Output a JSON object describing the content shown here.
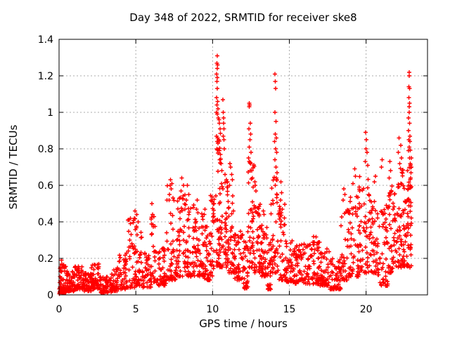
{
  "chart_data": {
    "type": "scatter",
    "title": "Day 348 of 2022, SRMTID for receiver ske8",
    "xlabel": "GPS time / hours",
    "ylabel": "SRMTID / TECUs",
    "xlim": [
      0,
      24
    ],
    "ylim": [
      0,
      1.4
    ],
    "xtick_values": [
      0,
      5,
      10,
      15,
      20
    ],
    "xtick_labels": [
      "0",
      "5",
      "10",
      "15",
      "20"
    ],
    "ytick_values": [
      0,
      0.2,
      0.4,
      0.6,
      0.8,
      1.0,
      1.2,
      1.4
    ],
    "ytick_labels": [
      "0",
      "0.2",
      "0.4",
      "0.6",
      "0.8",
      "1",
      "1.2",
      "1.4"
    ],
    "grid": true,
    "legend": "none",
    "marker": "plus",
    "marker_color": "#ff0000",
    "grid_color": "#ababab",
    "border_color": "#000000",
    "series_name": "SRMTID",
    "seed": 1348,
    "density_bands_comment": "dense scatter of ~2100 pts; each band = [x_start_h, x_end_h, y_min_TECU, y_max_TECU, point_count, low_bias_exponent] summarizing the plotted cloud envelope read from the image",
    "bands": [
      [
        0.02,
        0.5,
        0.01,
        0.18,
        55,
        2.0
      ],
      [
        0.5,
        1.0,
        0.02,
        0.13,
        50,
        1.8
      ],
      [
        1.0,
        1.6,
        0.03,
        0.16,
        55,
        1.8
      ],
      [
        1.6,
        2.1,
        0.02,
        0.12,
        45,
        1.8
      ],
      [
        2.1,
        2.6,
        0.03,
        0.17,
        50,
        1.8
      ],
      [
        2.6,
        3.4,
        0.01,
        0.1,
        60,
        1.8
      ],
      [
        3.4,
        3.9,
        0.02,
        0.15,
        45,
        1.8
      ],
      [
        3.9,
        4.4,
        0.03,
        0.22,
        40,
        2.0
      ],
      [
        4.4,
        5.0,
        0.04,
        0.42,
        45,
        2.2
      ],
      [
        5.0,
        5.45,
        0.05,
        0.38,
        35,
        2.2
      ],
      [
        5.45,
        6.0,
        0.04,
        0.24,
        40,
        1.8
      ],
      [
        6.0,
        6.3,
        0.07,
        0.44,
        25,
        2.0
      ],
      [
        6.3,
        7.0,
        0.05,
        0.26,
        50,
        1.8
      ],
      [
        7.0,
        7.6,
        0.08,
        0.6,
        45,
        2.2
      ],
      [
        7.6,
        8.2,
        0.1,
        0.55,
        50,
        2.0
      ],
      [
        8.2,
        8.8,
        0.1,
        0.5,
        50,
        2.2
      ],
      [
        8.8,
        9.45,
        0.1,
        0.45,
        55,
        2.0
      ],
      [
        9.45,
        9.85,
        0.08,
        0.4,
        40,
        2.0
      ],
      [
        9.85,
        10.15,
        0.1,
        0.55,
        30,
        1.6
      ],
      [
        10.15,
        10.6,
        0.15,
        0.85,
        50,
        1.6
      ],
      [
        10.6,
        11.0,
        0.15,
        0.65,
        40,
        1.8
      ],
      [
        11.0,
        11.45,
        0.12,
        0.55,
        40,
        1.8
      ],
      [
        11.45,
        12.0,
        0.08,
        0.35,
        45,
        1.8
      ],
      [
        12.0,
        12.3,
        0.03,
        0.3,
        30,
        1.6
      ],
      [
        12.3,
        12.7,
        0.15,
        0.75,
        45,
        1.6
      ],
      [
        12.7,
        13.15,
        0.12,
        0.5,
        45,
        1.8
      ],
      [
        13.15,
        13.55,
        0.1,
        0.4,
        40,
        1.8
      ],
      [
        13.55,
        13.8,
        0.03,
        0.3,
        25,
        1.6
      ],
      [
        13.8,
        14.3,
        0.12,
        0.65,
        45,
        1.8
      ],
      [
        14.3,
        14.75,
        0.08,
        0.5,
        35,
        2.0
      ],
      [
        14.75,
        15.35,
        0.07,
        0.3,
        50,
        1.8
      ],
      [
        15.35,
        16.35,
        0.06,
        0.28,
        75,
        1.8
      ],
      [
        16.35,
        17.0,
        0.06,
        0.32,
        55,
        1.8
      ],
      [
        17.0,
        17.6,
        0.05,
        0.26,
        50,
        1.8
      ],
      [
        17.6,
        18.35,
        0.03,
        0.2,
        60,
        1.8
      ],
      [
        18.35,
        18.95,
        0.08,
        0.5,
        45,
        2.0
      ],
      [
        18.95,
        19.55,
        0.1,
        0.55,
        45,
        2.0
      ],
      [
        19.55,
        20.15,
        0.12,
        0.65,
        50,
        1.8
      ],
      [
        20.15,
        20.75,
        0.12,
        0.55,
        50,
        1.8
      ],
      [
        20.75,
        21.45,
        0.05,
        0.5,
        55,
        1.8
      ],
      [
        21.45,
        21.95,
        0.12,
        0.6,
        50,
        1.8
      ],
      [
        21.95,
        22.45,
        0.15,
        0.7,
        55,
        1.7
      ],
      [
        22.45,
        22.75,
        0.15,
        0.6,
        35,
        1.8
      ],
      [
        22.75,
        22.95,
        0.25,
        0.8,
        30,
        1.5
      ]
    ],
    "outlier_points": [
      [
        0.03,
        0.005
      ],
      [
        0.05,
        0.01
      ],
      [
        0.08,
        0.02
      ],
      [
        0.15,
        0.19
      ],
      [
        0.18,
        0.17
      ],
      [
        1.25,
        0.155
      ],
      [
        2.3,
        0.165
      ],
      [
        2.95,
        0.012
      ],
      [
        3.05,
        0.015
      ],
      [
        4.6,
        0.3
      ],
      [
        4.7,
        0.33
      ],
      [
        4.75,
        0.28
      ],
      [
        4.9,
        0.42
      ],
      [
        4.95,
        0.46
      ],
      [
        5.05,
        0.44
      ],
      [
        5.15,
        0.4
      ],
      [
        6.05,
        0.5
      ],
      [
        7.2,
        0.55
      ],
      [
        7.25,
        0.63
      ],
      [
        7.3,
        0.58
      ],
      [
        7.35,
        0.61
      ],
      [
        7.42,
        0.53
      ],
      [
        7.95,
        0.57
      ],
      [
        8.0,
        0.64
      ],
      [
        8.1,
        0.6
      ],
      [
        8.3,
        0.52
      ],
      [
        8.35,
        0.6
      ],
      [
        8.45,
        0.55
      ],
      [
        8.95,
        0.47
      ],
      [
        9.0,
        0.52
      ],
      [
        9.05,
        0.45
      ],
      [
        9.45,
        0.44
      ],
      [
        9.5,
        0.47
      ],
      [
        10.25,
        0.87
      ],
      [
        10.26,
        1.08
      ],
      [
        10.27,
        1.21
      ],
      [
        10.27,
        1.0
      ],
      [
        10.28,
        1.17
      ],
      [
        10.28,
        0.8
      ],
      [
        10.29,
        1.27
      ],
      [
        10.29,
        1.04
      ],
      [
        10.3,
        1.24
      ],
      [
        10.3,
        1.13
      ],
      [
        10.3,
        0.84
      ],
      [
        10.31,
        1.31
      ],
      [
        10.31,
        1.19
      ],
      [
        10.31,
        0.99
      ],
      [
        10.32,
        1.26
      ],
      [
        10.33,
        1.06
      ],
      [
        10.33,
        0.86
      ],
      [
        10.35,
        1.02
      ],
      [
        10.36,
        0.83
      ],
      [
        10.38,
        0.97
      ],
      [
        10.4,
        0.85
      ],
      [
        10.42,
        0.96
      ],
      [
        10.44,
        0.79
      ],
      [
        10.45,
        0.94
      ],
      [
        10.47,
        0.74
      ],
      [
        10.48,
        0.91
      ],
      [
        10.5,
        0.77
      ],
      [
        10.52,
        0.885
      ],
      [
        10.55,
        0.72
      ],
      [
        10.6,
        0.68
      ],
      [
        10.68,
        1.07
      ],
      [
        10.7,
        1.0
      ],
      [
        10.71,
        0.97
      ],
      [
        10.72,
        0.94
      ],
      [
        10.73,
        0.91
      ],
      [
        10.69,
        0.87
      ],
      [
        10.74,
        0.85
      ],
      [
        10.76,
        0.8
      ],
      [
        10.8,
        0.66
      ],
      [
        10.9,
        0.63
      ],
      [
        11.1,
        0.6
      ],
      [
        11.12,
        0.72
      ],
      [
        11.18,
        0.7
      ],
      [
        11.25,
        0.66
      ],
      [
        11.3,
        0.63
      ],
      [
        12.08,
        0.04
      ],
      [
        12.15,
        0.05
      ],
      [
        12.35,
        0.75
      ],
      [
        12.36,
        0.91
      ],
      [
        12.38,
        1.05
      ],
      [
        12.39,
        0.81
      ],
      [
        12.4,
        1.03
      ],
      [
        12.42,
        1.04
      ],
      [
        12.43,
        0.85
      ],
      [
        12.45,
        0.94
      ],
      [
        12.47,
        0.72
      ],
      [
        12.48,
        0.88
      ],
      [
        12.5,
        0.78
      ],
      [
        12.55,
        0.68
      ],
      [
        12.6,
        0.64
      ],
      [
        12.75,
        0.62
      ],
      [
        12.78,
        0.6
      ],
      [
        12.82,
        0.57
      ],
      [
        13.3,
        0.46
      ],
      [
        13.35,
        0.44
      ],
      [
        13.6,
        0.03
      ],
      [
        13.65,
        0.05
      ],
      [
        14.04,
        0.84
      ],
      [
        14.05,
        1.21
      ],
      [
        14.06,
        1.0
      ],
      [
        14.07,
        0.74
      ],
      [
        14.08,
        1.17
      ],
      [
        14.09,
        0.88
      ],
      [
        14.1,
        1.13
      ],
      [
        14.11,
        0.8
      ],
      [
        14.12,
        0.95
      ],
      [
        14.13,
        0.7
      ],
      [
        14.15,
        0.86
      ],
      [
        14.16,
        0.63
      ],
      [
        14.18,
        0.78
      ],
      [
        14.2,
        0.67
      ],
      [
        14.42,
        0.52
      ],
      [
        14.45,
        0.62
      ],
      [
        14.48,
        0.45
      ],
      [
        14.5,
        0.56
      ],
      [
        14.55,
        0.47
      ],
      [
        17.9,
        0.03
      ],
      [
        18.1,
        0.035
      ],
      [
        18.5,
        0.52
      ],
      [
        18.55,
        0.58
      ],
      [
        18.62,
        0.55
      ],
      [
        19.15,
        0.61
      ],
      [
        19.25,
        0.69
      ],
      [
        19.3,
        0.65
      ],
      [
        19.95,
        0.73
      ],
      [
        19.98,
        0.89
      ],
      [
        20.0,
        0.8
      ],
      [
        20.02,
        0.85
      ],
      [
        20.05,
        0.78
      ],
      [
        20.1,
        0.71
      ],
      [
        20.55,
        0.62
      ],
      [
        20.6,
        0.65
      ],
      [
        21.0,
        0.7
      ],
      [
        21.05,
        0.74
      ],
      [
        21.25,
        0.06
      ],
      [
        21.3,
        0.08
      ],
      [
        21.5,
        0.64
      ],
      [
        21.55,
        0.73
      ],
      [
        21.6,
        0.68
      ],
      [
        22.1,
        0.78
      ],
      [
        22.15,
        0.86
      ],
      [
        22.2,
        0.72
      ],
      [
        22.25,
        0.82
      ],
      [
        22.3,
        0.75
      ],
      [
        22.7,
        0.68
      ],
      [
        22.76,
        0.9
      ],
      [
        22.77,
        0.97
      ],
      [
        22.77,
        0.79
      ],
      [
        22.78,
        1.14
      ],
      [
        22.79,
        1.08
      ],
      [
        22.79,
        0.85
      ],
      [
        22.8,
        1.22
      ],
      [
        22.8,
        1.0
      ],
      [
        22.81,
        1.03
      ],
      [
        22.82,
        1.2
      ],
      [
        22.82,
        0.81
      ],
      [
        22.83,
        1.13
      ],
      [
        22.83,
        0.94
      ],
      [
        22.84,
        1.05
      ],
      [
        22.84,
        0.75
      ],
      [
        22.85,
        0.87
      ],
      [
        22.85,
        0.15
      ],
      [
        22.86,
        0.84
      ],
      [
        22.88,
        0.72
      ],
      [
        22.88,
        0.25
      ],
      [
        22.9,
        0.64
      ],
      [
        22.92,
        0.22
      ],
      [
        22.95,
        0.16
      ]
    ]
  }
}
